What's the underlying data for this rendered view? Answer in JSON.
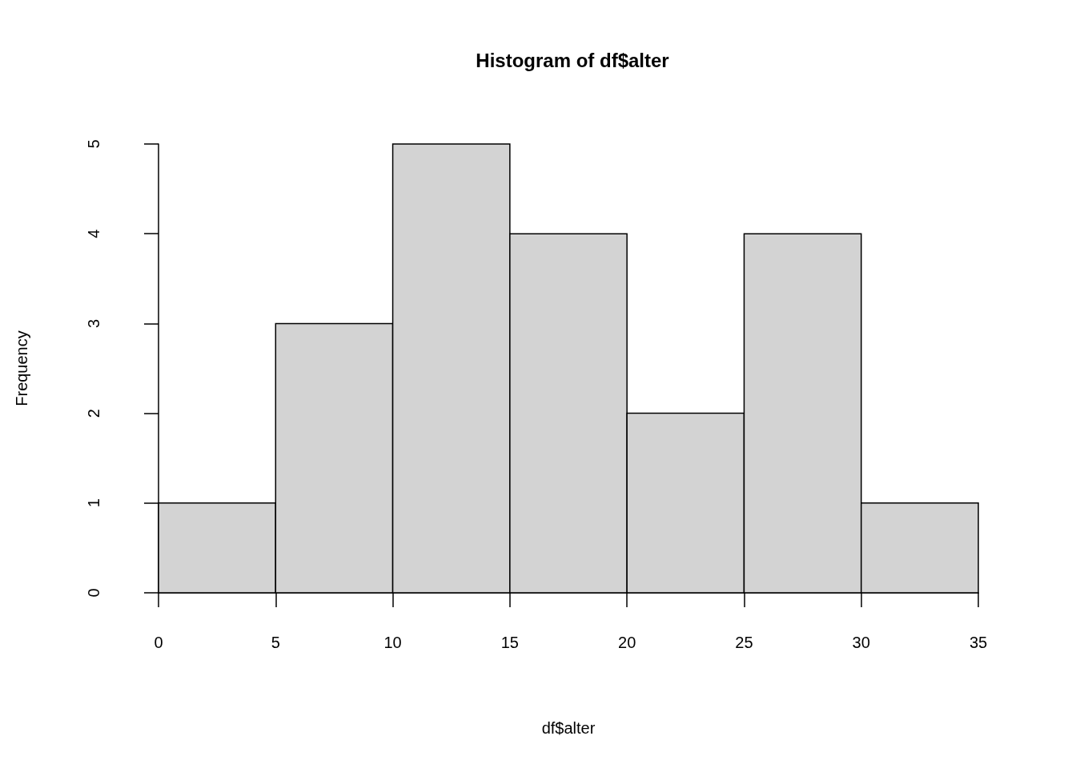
{
  "chart_data": {
    "type": "histogram",
    "title": "Histogram of df$alter",
    "xlabel": "df$alter",
    "ylabel": "Frequency",
    "bins": [
      0,
      5,
      10,
      15,
      20,
      25,
      30,
      35
    ],
    "values": [
      1,
      3,
      5,
      4,
      2,
      4,
      1
    ],
    "color": "#d3d3d3",
    "xlim": [
      0,
      35
    ],
    "xticks": [
      0,
      5,
      10,
      15,
      20,
      25,
      30,
      35
    ],
    "ylim": [
      0,
      5
    ],
    "yticks": [
      0,
      1,
      2,
      3,
      4,
      5
    ],
    "grid": false
  }
}
